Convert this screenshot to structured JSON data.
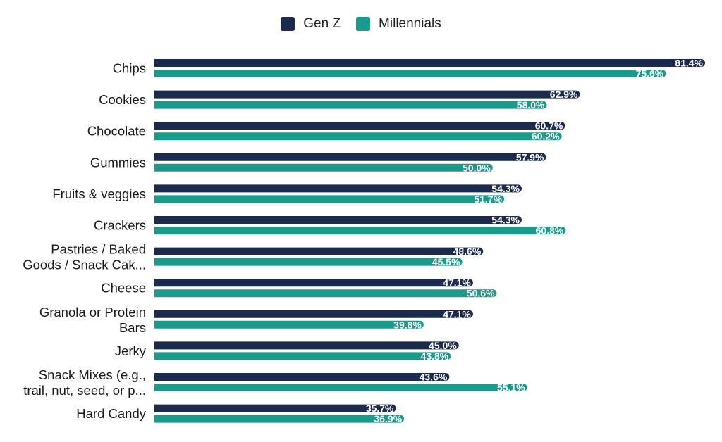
{
  "chart_data": {
    "type": "bar",
    "orientation": "horizontal",
    "title": "",
    "xlabel": "",
    "ylabel": "",
    "xlim": [
      0,
      81.4
    ],
    "grid": false,
    "legend_position": "top-center",
    "value_suffix": "%",
    "categories": [
      [
        "Chips"
      ],
      [
        "Cookies"
      ],
      [
        "Chocolate"
      ],
      [
        "Gummies"
      ],
      [
        "Fruits & veggies"
      ],
      [
        "Crackers"
      ],
      [
        "Pastries / Baked",
        "Goods / Snack Cak..."
      ],
      [
        "Cheese"
      ],
      [
        "Granola or Protein",
        "Bars"
      ],
      [
        "Jerky"
      ],
      [
        "Snack Mixes (e.g.,",
        "trail, nut, seed, or p..."
      ],
      [
        "Hard Candy"
      ]
    ],
    "series": [
      {
        "name": "Gen Z",
        "color": "#1b2a4f",
        "values": [
          81.4,
          62.9,
          60.7,
          57.9,
          54.3,
          54.3,
          48.6,
          47.1,
          47.1,
          45.0,
          43.6,
          35.7
        ]
      },
      {
        "name": "Millennials",
        "color": "#1a9a8a",
        "values": [
          75.6,
          58.0,
          60.2,
          50.0,
          51.7,
          60.8,
          45.5,
          50.6,
          39.8,
          43.8,
          55.1,
          36.9
        ]
      }
    ]
  }
}
